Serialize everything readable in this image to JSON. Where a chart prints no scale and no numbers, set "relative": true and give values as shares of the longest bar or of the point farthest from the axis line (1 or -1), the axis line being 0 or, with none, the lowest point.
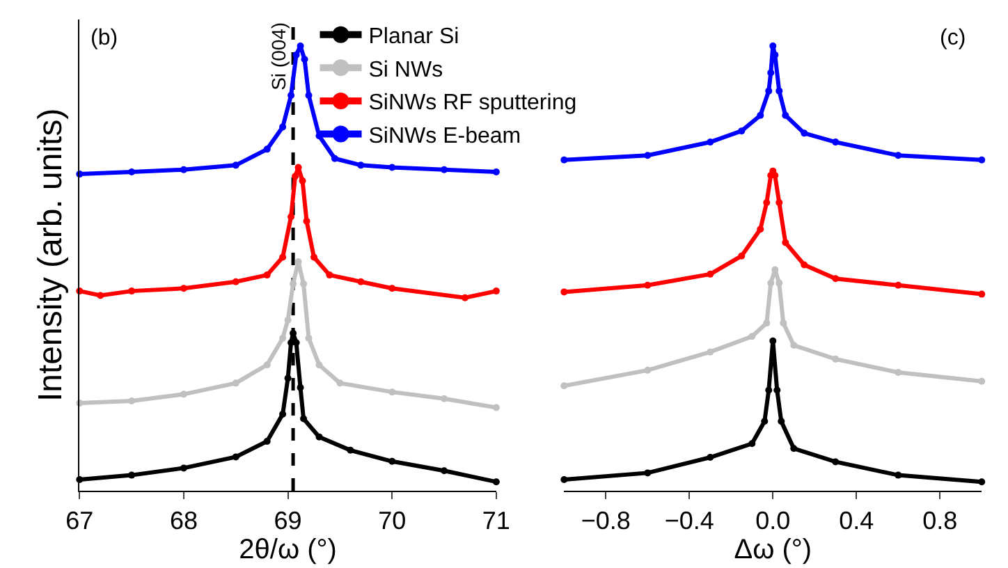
{
  "chart_data": [
    {
      "type": "line",
      "relative": true,
      "marker": "circle",
      "xlabel": "2θ/ω (°)",
      "ylabel": "Intensity (arb. units)",
      "xlim": [
        67,
        71
      ],
      "xticks": [
        67,
        68,
        69,
        70,
        71
      ],
      "legend": "top right",
      "annotations": [
        "(b)"
      ],
      "ref_lines": [
        {
          "axis": "x",
          "value": 69.05,
          "label": "Si (004)",
          "color": "#000000",
          "line_style": "dashed"
        }
      ],
      "series": [
        {
          "name": "Planar Si",
          "color": "#000000",
          "x": [
            67,
            67.5,
            68,
            68.5,
            68.8,
            68.95,
            69.0,
            69.03,
            69.05,
            69.08,
            69.12,
            69.15,
            69.3,
            69.6,
            70,
            70.5,
            71
          ],
          "values": [
            0.025,
            0.035,
            0.051,
            0.076,
            0.111,
            0.172,
            0.253,
            0.333,
            0.354,
            0.333,
            0.232,
            0.162,
            0.121,
            0.091,
            0.066,
            0.045,
            0.02
          ]
        },
        {
          "name": "Si NWs",
          "color": "#c0c0c0",
          "x": [
            67,
            67.5,
            68,
            68.5,
            68.8,
            68.95,
            69.0,
            69.05,
            69.1,
            69.15,
            69.2,
            69.3,
            69.5,
            70,
            70.5,
            71
          ],
          "values": [
            0.197,
            0.202,
            0.217,
            0.242,
            0.283,
            0.343,
            0.384,
            0.465,
            0.515,
            0.465,
            0.343,
            0.283,
            0.242,
            0.222,
            0.207,
            0.187
          ]
        },
        {
          "name": "SiNWs RF sputtering",
          "color": "#ff0000",
          "x": [
            67,
            67.2,
            67.5,
            68,
            68.5,
            68.8,
            68.95,
            69.03,
            69.07,
            69.1,
            69.14,
            69.18,
            69.25,
            69.4,
            69.7,
            70,
            70.7,
            71
          ],
          "values": [
            0.449,
            0.439,
            0.449,
            0.455,
            0.47,
            0.485,
            0.525,
            0.616,
            0.707,
            0.727,
            0.697,
            0.606,
            0.525,
            0.485,
            0.47,
            0.455,
            0.434,
            0.449
          ]
        },
        {
          "name": "SiNWs E-beam",
          "color": "#0000ff",
          "x": [
            67,
            67.5,
            68,
            68.5,
            68.8,
            68.95,
            69.03,
            69.08,
            69.12,
            69.16,
            69.2,
            69.3,
            69.45,
            69.7,
            70,
            70.5,
            71
          ],
          "values": [
            0.712,
            0.717,
            0.722,
            0.732,
            0.768,
            0.818,
            0.889,
            0.98,
            1.0,
            0.97,
            0.889,
            0.798,
            0.747,
            0.732,
            0.727,
            0.722,
            0.717
          ]
        }
      ]
    },
    {
      "type": "line",
      "relative": true,
      "marker": "circle",
      "xlabel": "Δω (°)",
      "xlim": [
        -1,
        1
      ],
      "xticks": [
        {
          "value": -0.8,
          "label": "−0.8"
        },
        {
          "value": -0.4,
          "label": "−0.4"
        },
        {
          "value": 0,
          "label": "0.0"
        },
        {
          "value": 0.4,
          "label": "0.4"
        },
        {
          "value": 0.8,
          "label": "0.8"
        }
      ],
      "annotations": [
        "(c)"
      ],
      "series": [
        {
          "color": "#000000",
          "x": [
            -1,
            -0.6,
            -0.3,
            -0.1,
            -0.04,
            -0.02,
            0,
            0.02,
            0.04,
            0.1,
            0.3,
            0.6,
            1
          ],
          "values": [
            0.025,
            0.04,
            0.075,
            0.106,
            0.156,
            0.226,
            0.337,
            0.226,
            0.156,
            0.095,
            0.065,
            0.035,
            0.02
          ]
        },
        {
          "color": "#c0c0c0",
          "x": [
            -1,
            -0.6,
            -0.3,
            -0.1,
            -0.03,
            -0.01,
            0.01,
            0.03,
            0.05,
            0.1,
            0.3,
            0.6,
            1
          ],
          "values": [
            0.236,
            0.271,
            0.312,
            0.347,
            0.377,
            0.467,
            0.497,
            0.467,
            0.377,
            0.327,
            0.296,
            0.266,
            0.246
          ]
        },
        {
          "color": "#ff0000",
          "x": [
            -1,
            -0.6,
            -0.3,
            -0.15,
            -0.06,
            -0.03,
            -0.01,
            0,
            0.01,
            0.03,
            0.06,
            0.15,
            0.3,
            0.6,
            1
          ],
          "values": [
            0.447,
            0.462,
            0.487,
            0.528,
            0.588,
            0.648,
            0.709,
            0.719,
            0.709,
            0.648,
            0.558,
            0.508,
            0.477,
            0.462,
            0.442
          ]
        },
        {
          "color": "#0000ff",
          "x": [
            -1,
            -0.6,
            -0.3,
            -0.15,
            -0.06,
            -0.02,
            -0.01,
            0,
            0.01,
            0.03,
            0.06,
            0.15,
            0.3,
            0.6,
            1
          ],
          "values": [
            0.744,
            0.754,
            0.784,
            0.809,
            0.844,
            0.899,
            0.94,
            1.0,
            0.98,
            0.899,
            0.844,
            0.804,
            0.784,
            0.754,
            0.744
          ]
        }
      ]
    }
  ]
}
